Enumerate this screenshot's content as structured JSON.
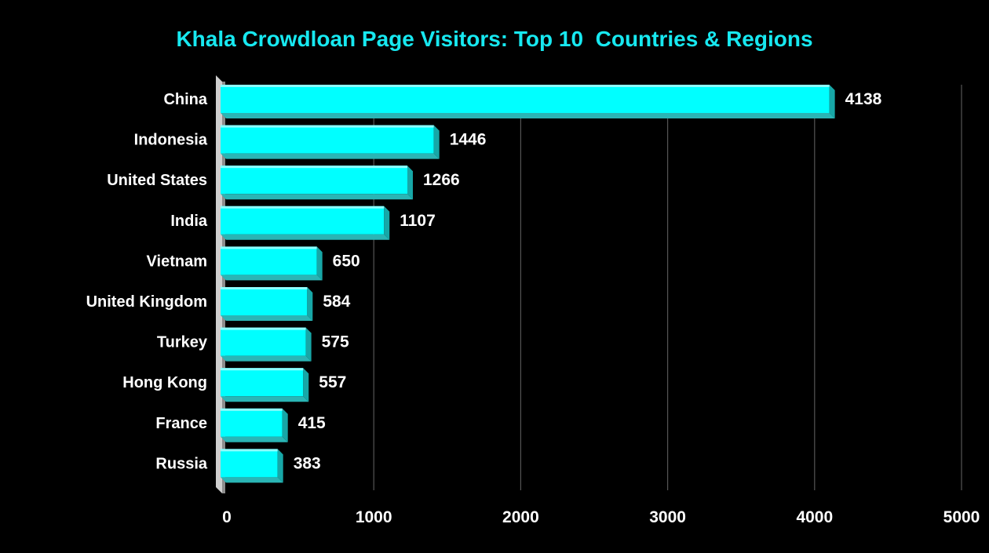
{
  "chart_data": {
    "type": "bar",
    "orientation": "horizontal",
    "title": "Khala Crowdloan Page Visitors: Top 10  Countries & Regions",
    "categories": [
      "China",
      "Indonesia",
      "United States",
      "India",
      "Vietnam",
      "United Kingdom",
      "Turkey",
      "Hong Kong",
      "France",
      "Russia"
    ],
    "values": [
      4138,
      1446,
      1266,
      1107,
      650,
      584,
      575,
      557,
      415,
      383
    ],
    "xlim": [
      0,
      5000
    ],
    "x_ticks": [
      "0",
      "1000",
      "2000",
      "3000",
      "4000",
      "5000"
    ],
    "grid": true,
    "legend": "none",
    "style": "3d-bars"
  },
  "colors": {
    "background": "#000000",
    "title": "#17e8f0",
    "bar_front": "#00ffff",
    "bar_top": "#8ffcfc",
    "bar_side": "#17a7a7",
    "bar_bottom": "#2ab5b5",
    "gridline": "#555555",
    "text": "#ffffff"
  }
}
